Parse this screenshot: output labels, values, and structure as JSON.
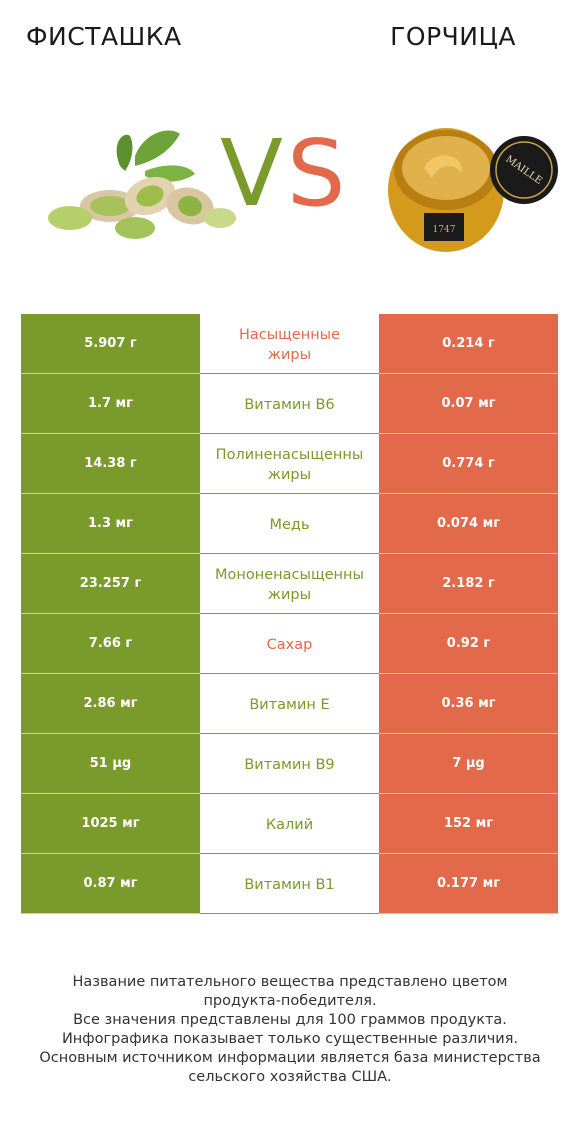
{
  "header": {
    "left_title": "ФИСТАШКА",
    "right_title": "ГОРЧИЦА",
    "vs_v": "V",
    "vs_s": "S"
  },
  "colors": {
    "green": "#7a9a2b",
    "red": "#e2694a"
  },
  "rows": [
    {
      "left": "5.907 г",
      "label": "Насыщенные\nжиры",
      "right": "0.214 г",
      "winner": "red"
    },
    {
      "left": "1.7 мг",
      "label": "Витамин B6",
      "right": "0.07 мг",
      "winner": "green"
    },
    {
      "left": "14.38 г",
      "label": "Полиненасыщенны\nжиры",
      "right": "0.774 г",
      "winner": "green"
    },
    {
      "left": "1.3 мг",
      "label": "Медь",
      "right": "0.074 мг",
      "winner": "green"
    },
    {
      "left": "23.257 г",
      "label": "Мононенасыщенны\nжиры",
      "right": "2.182 г",
      "winner": "green"
    },
    {
      "left": "7.66 г",
      "label": "Сахар",
      "right": "0.92 г",
      "winner": "red"
    },
    {
      "left": "2.86 мг",
      "label": "Витамин E",
      "right": "0.36 мг",
      "winner": "green"
    },
    {
      "left": "51 µg",
      "label": "Витамин B9",
      "right": "7 µg",
      "winner": "green"
    },
    {
      "left": "1025 мг",
      "label": "Калий",
      "right": "152 мг",
      "winner": "green"
    },
    {
      "left": "0.87 мг",
      "label": "Витамин B1",
      "right": "0.177 мг",
      "winner": "green"
    }
  ],
  "footer": {
    "line1": "Название питательного вещества представлено цветом",
    "line2": "продукта-победителя.",
    "line3": "Все значения представлены для 100 граммов продукта.",
    "line4": "Инфографика показывает только существенные различия.",
    "line5": "Основным источником информации является база министерства",
    "line6": "сельского хозяйства США."
  },
  "jar_label": {
    "brand": "MAILLE",
    "year": "1747"
  }
}
